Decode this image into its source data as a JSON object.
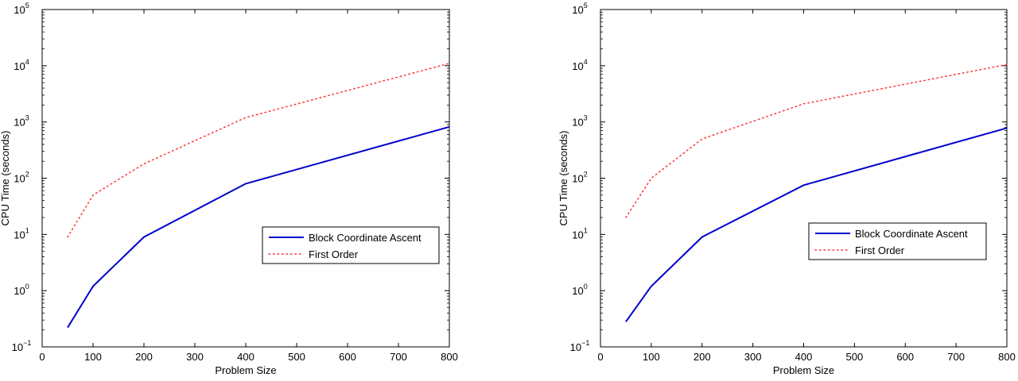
{
  "chart_data": [
    {
      "type": "line",
      "xlabel": "Problem Size",
      "ylabel": "CPU Time (seconds)",
      "xlim": [
        0,
        800
      ],
      "ylim": [
        0.1,
        100000
      ],
      "yscale": "log",
      "grid": false,
      "legend_placement": "right",
      "xticks": [
        0,
        100,
        200,
        300,
        400,
        500,
        600,
        700,
        800
      ],
      "yticks": [
        {
          "value": 0.1,
          "base": "10",
          "exp": "−1"
        },
        {
          "value": 1,
          "base": "10",
          "exp": "0"
        },
        {
          "value": 10,
          "base": "10",
          "exp": "1"
        },
        {
          "value": 100,
          "base": "10",
          "exp": "2"
        },
        {
          "value": 1000,
          "base": "10",
          "exp": "3"
        },
        {
          "value": 10000,
          "base": "10",
          "exp": "4"
        },
        {
          "value": 100000,
          "base": "10",
          "exp": "5"
        }
      ],
      "series": [
        {
          "name": "Block Coordinate Ascent",
          "color": "#0000cc",
          "style": "solid",
          "x": [
            50,
            100,
            200,
            400,
            800
          ],
          "y": [
            0.22,
            1.2,
            9,
            80,
            820
          ]
        },
        {
          "name": "First Order",
          "color": "#ff3333",
          "style": "dotted",
          "x": [
            50,
            100,
            200,
            400,
            800
          ],
          "y": [
            9,
            50,
            180,
            1200,
            11000
          ]
        }
      ]
    },
    {
      "type": "line",
      "xlabel": "Problem Size",
      "ylabel": "CPU Time (seconds)",
      "xlim": [
        0,
        800
      ],
      "ylim": [
        0.1,
        100000
      ],
      "yscale": "log",
      "grid": false,
      "legend_placement": "right",
      "xticks": [
        0,
        100,
        200,
        300,
        400,
        500,
        600,
        700,
        800
      ],
      "yticks": [
        {
          "value": 0.1,
          "base": "10",
          "exp": "−1"
        },
        {
          "value": 1,
          "base": "10",
          "exp": "0"
        },
        {
          "value": 10,
          "base": "10",
          "exp": "1"
        },
        {
          "value": 100,
          "base": "10",
          "exp": "2"
        },
        {
          "value": 1000,
          "base": "10",
          "exp": "3"
        },
        {
          "value": 10000,
          "base": "10",
          "exp": "4"
        },
        {
          "value": 100000,
          "base": "10",
          "exp": "5"
        }
      ],
      "series": [
        {
          "name": "Block Coordinate Ascent",
          "color": "#0000cc",
          "style": "solid",
          "x": [
            50,
            100,
            200,
            400,
            800
          ],
          "y": [
            0.28,
            1.2,
            9,
            75,
            780
          ]
        },
        {
          "name": "First Order",
          "color": "#ff3333",
          "style": "dotted",
          "x": [
            50,
            100,
            200,
            400,
            800
          ],
          "y": [
            20,
            100,
            500,
            2100,
            10500
          ]
        }
      ]
    }
  ]
}
